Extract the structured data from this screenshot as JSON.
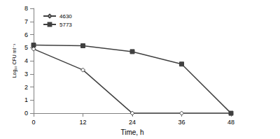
{
  "chart_data": {
    "type": "line",
    "x_label": "Time, h",
    "y_label": "Log₁₀ CFU ml⁻¹",
    "x": [
      0,
      12,
      24,
      36,
      48
    ],
    "series": [
      {
        "name": "4630",
        "color": "#404040",
        "marker": "diamond_open",
        "values": [
          4.9,
          3.3,
          0,
          0,
          0
        ]
      },
      {
        "name": "5773",
        "color": "#404040",
        "marker": "square",
        "values": [
          5.2,
          5.15,
          4.7,
          3.75,
          0
        ]
      }
    ],
    "xlim": [
      0,
      48
    ],
    "xticks": [
      0,
      12,
      24,
      36,
      48
    ],
    "ylim": [
      0,
      8
    ],
    "yticks": [
      0,
      1,
      2,
      3,
      4,
      5,
      6,
      7,
      8
    ],
    "grid": false,
    "legend": "upper-left"
  }
}
